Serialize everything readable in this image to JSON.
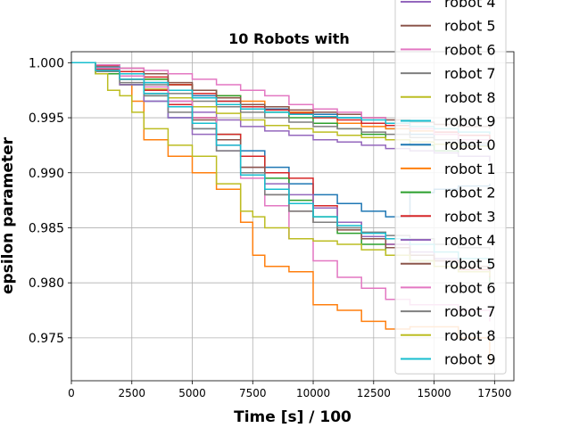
{
  "chart_data": {
    "type": "line",
    "title": "10 Robots with",
    "xlabel": "Time [s] / 100",
    "ylabel": "epsilon parameter",
    "xlim": [
      0,
      18300
    ],
    "ylim": [
      0.9711,
      1.001
    ],
    "xticks": [
      0,
      2500,
      5000,
      7500,
      10000,
      12500,
      15000,
      17500
    ],
    "yticks": [
      0.975,
      0.98,
      0.985,
      0.99,
      0.995,
      1.0
    ],
    "xtick_labels": [
      "0",
      "2500",
      "5000",
      "7500",
      "10000",
      "12500",
      "15000",
      "17500"
    ],
    "ytick_labels": [
      "0.975",
      "0.980",
      "0.985",
      "0.990",
      "0.995",
      "1.000"
    ],
    "grid": true,
    "legend_position": "right (overlapping plot, partially cut off at top)",
    "legend": [
      {
        "name": "robot 4",
        "color": "#9467bd"
      },
      {
        "name": "robot 5",
        "color": "#8c564b"
      },
      {
        "name": "robot 6",
        "color": "#e377c2"
      },
      {
        "name": "robot 7",
        "color": "#7f7f7f"
      },
      {
        "name": "robot 8",
        "color": "#bcbd22"
      },
      {
        "name": "robot 9",
        "color": "#17becf"
      },
      {
        "name": "robot 0",
        "color": "#1f77b4"
      },
      {
        "name": "robot 1",
        "color": "#ff7f0e"
      },
      {
        "name": "robot 2",
        "color": "#2ca02c"
      },
      {
        "name": "robot 3",
        "color": "#d62728"
      },
      {
        "name": "robot 4",
        "color": "#9467bd"
      },
      {
        "name": "robot 5",
        "color": "#8c564b"
      },
      {
        "name": "robot 6",
        "color": "#e377c2"
      },
      {
        "name": "robot 7",
        "color": "#7f7f7f"
      },
      {
        "name": "robot 8",
        "color": "#bcbd22"
      },
      {
        "name": "robot 9",
        "color": "#17becf"
      }
    ],
    "series": [
      {
        "name": "robot 0",
        "color": "#1f77b4",
        "x": [
          0,
          1000,
          2000,
          3000,
          4000,
          5000,
          6000,
          7000,
          8000,
          9000,
          10000,
          11000,
          12000,
          13000,
          14000,
          15000,
          16000,
          17300
        ],
        "y": [
          1.0,
          0.9995,
          0.999,
          0.9982,
          0.9975,
          0.997,
          0.9965,
          0.996,
          0.9958,
          0.9955,
          0.9953,
          0.995,
          0.9945,
          0.994,
          0.9935,
          0.993,
          0.9925,
          0.992
        ]
      },
      {
        "name": "robot 1",
        "color": "#ff7f0e",
        "x": [
          0,
          1000,
          2000,
          3000,
          4000,
          5000,
          6000,
          7000,
          8000,
          9000,
          10000,
          11000,
          12000,
          13000,
          14000,
          15000,
          16000,
          17300
        ],
        "y": [
          1.0,
          0.9995,
          0.999,
          0.9985,
          0.998,
          0.9975,
          0.997,
          0.9965,
          0.996,
          0.9955,
          0.995,
          0.9945,
          0.9942,
          0.994,
          0.9938,
          0.9935,
          0.993,
          0.9928
        ]
      },
      {
        "name": "robot 2",
        "color": "#2ca02c",
        "x": [
          0,
          1000,
          2000,
          3000,
          4000,
          5000,
          6000,
          7000,
          8000,
          9000,
          10000,
          11000,
          12000,
          13000,
          14000,
          15000,
          16000,
          17300
        ],
        "y": [
          1.0,
          0.9996,
          0.9992,
          0.9985,
          0.998,
          0.9975,
          0.997,
          0.9962,
          0.9955,
          0.995,
          0.9945,
          0.994,
          0.9935,
          0.993,
          0.9925,
          0.992,
          0.9915,
          0.991
        ]
      },
      {
        "name": "robot 3",
        "color": "#d62728",
        "x": [
          0,
          1000,
          2000,
          3000,
          4000,
          5000,
          6000,
          7000,
          8000,
          9000,
          10000,
          11000,
          12000,
          13000,
          14000,
          15000,
          16000,
          17300
        ],
        "y": [
          1.0,
          0.9997,
          0.9992,
          0.9987,
          0.998,
          0.9972,
          0.9965,
          0.996,
          0.9957,
          0.9954,
          0.995,
          0.9948,
          0.9945,
          0.9943,
          0.994,
          0.9937,
          0.9934,
          0.993
        ]
      },
      {
        "name": "robot 4",
        "color": "#9467bd",
        "x": [
          0,
          1000,
          2000,
          3000,
          4000,
          5000,
          6000,
          7000,
          8000,
          9000,
          10000,
          11000,
          12000,
          13000,
          14000,
          15000,
          16000,
          17300
        ],
        "y": [
          1.0,
          0.9994,
          0.9985,
          0.9975,
          0.9965,
          0.9955,
          0.9948,
          0.9942,
          0.9938,
          0.9934,
          0.993,
          0.9928,
          0.9925,
          0.9922,
          0.992,
          0.9918,
          0.9915,
          0.991
        ]
      },
      {
        "name": "robot 5",
        "color": "#8c564b",
        "x": [
          0,
          1000,
          2000,
          3000,
          4000,
          5000,
          6000,
          7000,
          8000,
          9000,
          10000,
          11000,
          12000,
          13000,
          14000,
          15000,
          16000,
          17300
        ],
        "y": [
          1.0,
          0.9998,
          0.9995,
          0.999,
          0.9982,
          0.9975,
          0.9968,
          0.9962,
          0.996,
          0.9957,
          0.9955,
          0.9953,
          0.995,
          0.9948,
          0.9946,
          0.9944,
          0.9942,
          0.994
        ]
      },
      {
        "name": "robot 6",
        "color": "#e377c2",
        "x": [
          0,
          1000,
          2000,
          3000,
          4000,
          5000,
          6000,
          7000,
          8000,
          9000,
          10000,
          11000,
          12000,
          13000,
          14000,
          15000,
          16000,
          17300
        ],
        "y": [
          1.0,
          0.9998,
          0.9995,
          0.9993,
          0.999,
          0.9985,
          0.998,
          0.9975,
          0.997,
          0.9962,
          0.9958,
          0.9955,
          0.995,
          0.9945,
          0.994,
          0.9935,
          0.993,
          0.9925
        ]
      },
      {
        "name": "robot 7",
        "color": "#7f7f7f",
        "x": [
          0,
          1000,
          2000,
          3000,
          4000,
          5000,
          6000,
          7000,
          8000,
          9000,
          10000,
          11000,
          12000,
          13000,
          14000,
          15000,
          16000,
          17300
        ],
        "y": [
          1.0,
          0.9996,
          0.999,
          0.998,
          0.9972,
          0.9965,
          0.996,
          0.9955,
          0.995,
          0.9946,
          0.9942,
          0.994,
          0.9937,
          0.9935,
          0.9932,
          0.993,
          0.9927,
          0.9925
        ]
      },
      {
        "name": "robot 8",
        "color": "#bcbd22",
        "x": [
          0,
          1000,
          2000,
          3000,
          4000,
          5000,
          6000,
          7000,
          8000,
          9000,
          10000,
          11000,
          12000,
          13000,
          14000,
          15000,
          16000,
          17300
        ],
        "y": [
          1.0,
          0.9993,
          0.9985,
          0.9976,
          0.9968,
          0.996,
          0.9954,
          0.9948,
          0.9943,
          0.994,
          0.9937,
          0.9934,
          0.9932,
          0.993,
          0.9928,
          0.9926,
          0.9924,
          0.9922
        ]
      },
      {
        "name": "robot 9",
        "color": "#17becf",
        "x": [
          0,
          1000,
          2000,
          3000,
          4000,
          5000,
          6000,
          7000,
          8000,
          9000,
          10000,
          11000,
          12000,
          13000,
          14000,
          15000,
          16000,
          17300
        ],
        "y": [
          1.0,
          0.9996,
          0.999,
          0.9982,
          0.9975,
          0.9968,
          0.9962,
          0.9958,
          0.9955,
          0.9953,
          0.9951,
          0.995,
          0.9948,
          0.9945,
          0.9942,
          0.994,
          0.9937,
          0.9935
        ]
      },
      {
        "name": "robot 0",
        "color": "#1f77b4",
        "x": [
          0,
          1000,
          2000,
          3000,
          4000,
          5000,
          6000,
          7000,
          8000,
          9000,
          10000,
          11000,
          12000,
          13000,
          14000,
          15000,
          16000,
          17300
        ],
        "y": [
          1.0,
          0.999,
          0.998,
          0.9965,
          0.995,
          0.994,
          0.993,
          0.992,
          0.9905,
          0.989,
          0.988,
          0.9872,
          0.9865,
          0.986,
          0.9882,
          0.9885,
          0.9888,
          0.989
        ]
      },
      {
        "name": "robot 1",
        "color": "#ff7f0e",
        "x": [
          0,
          1000,
          2000,
          2500,
          3000,
          4000,
          5000,
          6000,
          7000,
          7500,
          8000,
          9000,
          10000,
          11000,
          12000,
          13000,
          14000,
          15000,
          16000,
          17300
        ],
        "y": [
          1.0,
          0.9995,
          0.998,
          0.9965,
          0.993,
          0.9915,
          0.99,
          0.9885,
          0.9855,
          0.9825,
          0.9815,
          0.981,
          0.978,
          0.9775,
          0.9765,
          0.9758,
          0.976,
          0.976,
          0.975,
          0.9725
        ]
      },
      {
        "name": "robot 2",
        "color": "#2ca02c",
        "x": [
          0,
          1000,
          2000,
          3000,
          4000,
          5000,
          6000,
          7000,
          8000,
          9000,
          10000,
          11000,
          12000,
          13000,
          14000,
          15000,
          16000,
          17300
        ],
        "y": [
          1.0,
          0.999,
          0.998,
          0.997,
          0.996,
          0.995,
          0.9935,
          0.9915,
          0.9895,
          0.9875,
          0.986,
          0.9845,
          0.9835,
          0.9825,
          0.982,
          0.9815,
          0.981,
          0.98
        ]
      },
      {
        "name": "robot 3",
        "color": "#d62728",
        "x": [
          0,
          1000,
          2000,
          3000,
          4000,
          5000,
          6000,
          7000,
          8000,
          9000,
          10000,
          11000,
          12000,
          13000,
          14000,
          15000,
          16000,
          17300
        ],
        "y": [
          1.0,
          0.9994,
          0.9985,
          0.9975,
          0.9962,
          0.995,
          0.9935,
          0.9915,
          0.99,
          0.9895,
          0.987,
          0.9855,
          0.984,
          0.9835,
          0.9825,
          0.982,
          0.9812,
          0.9805
        ]
      },
      {
        "name": "robot 4",
        "color": "#9467bd",
        "x": [
          0,
          1000,
          2000,
          3000,
          4000,
          5000,
          6000,
          7000,
          8000,
          9000,
          10000,
          11000,
          12000,
          13000,
          14000,
          15000,
          16000,
          17300
        ],
        "y": [
          1.0,
          0.9992,
          0.998,
          0.9965,
          0.995,
          0.9935,
          0.992,
          0.9905,
          0.989,
          0.988,
          0.9868,
          0.9855,
          0.9842,
          0.9835,
          0.9828,
          0.9822,
          0.9815,
          0.981
        ]
      },
      {
        "name": "robot 5",
        "color": "#8c564b",
        "x": [
          0,
          1000,
          2000,
          3000,
          4000,
          5000,
          6000,
          7000,
          8000,
          9000,
          10000,
          11000,
          12000,
          13000,
          14000,
          15000,
          16000,
          17300
        ],
        "y": [
          1.0,
          0.9995,
          0.9985,
          0.9972,
          0.996,
          0.9948,
          0.993,
          0.9905,
          0.988,
          0.9865,
          0.9855,
          0.9848,
          0.984,
          0.9832,
          0.9825,
          0.982,
          0.9815,
          0.981
        ]
      },
      {
        "name": "robot 6",
        "color": "#e377c2",
        "x": [
          0,
          1000,
          2000,
          3000,
          4000,
          5000,
          6000,
          7000,
          8000,
          9000,
          10000,
          11000,
          12000,
          13000,
          14000,
          15000,
          16000,
          17300
        ],
        "y": [
          1.0,
          0.9995,
          0.9988,
          0.9978,
          0.9965,
          0.995,
          0.9925,
          0.9895,
          0.987,
          0.984,
          0.982,
          0.9805,
          0.9795,
          0.9785,
          0.978,
          0.978,
          0.9775,
          0.9765
        ]
      },
      {
        "name": "robot 7",
        "color": "#7f7f7f",
        "x": [
          0,
          1000,
          2000,
          3000,
          4000,
          5000,
          6000,
          7000,
          8000,
          9000,
          10000,
          11000,
          12000,
          13000,
          14000,
          15000,
          16000,
          17300
        ],
        "y": [
          1.0,
          0.9992,
          0.9982,
          0.997,
          0.9955,
          0.994,
          0.992,
          0.99,
          0.988,
          0.9865,
          0.9855,
          0.985,
          0.9846,
          0.9843,
          0.984,
          0.9835,
          0.9832,
          0.983
        ]
      },
      {
        "name": "robot 8",
        "color": "#bcbd22",
        "x": [
          0,
          1000,
          1500,
          2000,
          2500,
          3000,
          4000,
          5000,
          6000,
          7000,
          7500,
          8000,
          9000,
          10000,
          11000,
          12000,
          13000,
          14000,
          15000,
          16000,
          17300
        ],
        "y": [
          1.0,
          0.999,
          0.9975,
          0.997,
          0.9955,
          0.994,
          0.9925,
          0.9915,
          0.989,
          0.9865,
          0.986,
          0.985,
          0.984,
          0.9838,
          0.9835,
          0.983,
          0.9825,
          0.982,
          0.9815,
          0.981,
          0.9806
        ]
      },
      {
        "name": "robot 9",
        "color": "#17becf",
        "x": [
          0,
          1000,
          2000,
          3000,
          4000,
          5000,
          6000,
          7000,
          8000,
          9000,
          10000,
          11000,
          12000,
          13000,
          14000,
          15000,
          16000,
          17300
        ],
        "y": [
          1.0,
          0.9993,
          0.9985,
          0.9972,
          0.996,
          0.9945,
          0.9925,
          0.9898,
          0.9885,
          0.9872,
          0.986,
          0.9852,
          0.9845,
          0.984,
          0.9835,
          0.9828,
          0.9822,
          0.9815
        ]
      }
    ]
  }
}
